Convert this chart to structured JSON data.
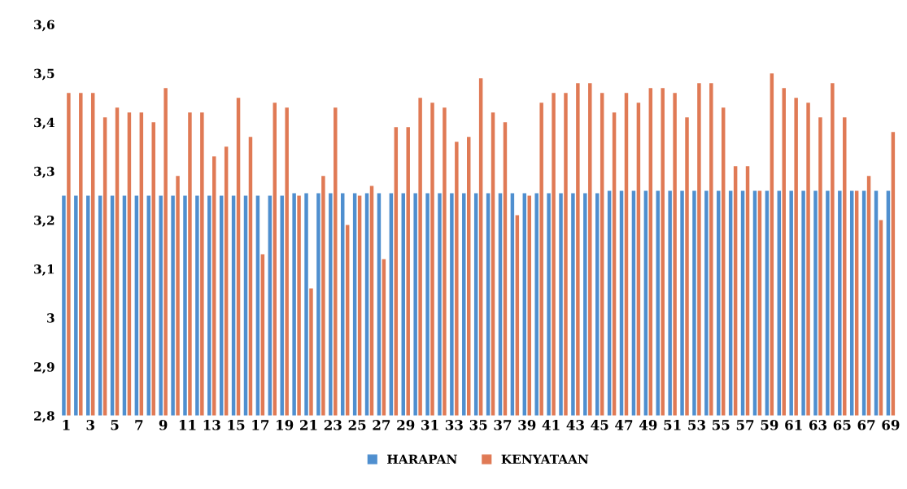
{
  "chart_data": {
    "type": "bar",
    "categories": [
      "1",
      null,
      "3",
      null,
      "5",
      null,
      "7",
      null,
      "9",
      null,
      "11",
      null,
      "13",
      null,
      "15",
      null,
      "17",
      null,
      "19",
      null,
      "21",
      null,
      "23",
      null,
      "25",
      null,
      "27",
      null,
      "29",
      null,
      "31",
      null,
      "33",
      null,
      "35",
      null,
      "37",
      null,
      "39",
      null,
      "41",
      null,
      "43",
      null,
      "45",
      null,
      "47",
      null,
      "49",
      null,
      "51",
      null,
      "53",
      null,
      "55",
      null,
      "57",
      null,
      "59",
      null,
      "61",
      null,
      "63",
      null,
      "65",
      null,
      "67",
      null,
      "69"
    ],
    "series": [
      {
        "name": "HARAPAN",
        "color": "#4f8fcf",
        "values": [
          3.25,
          3.25,
          3.25,
          3.25,
          3.25,
          3.25,
          3.25,
          3.25,
          3.25,
          3.25,
          3.25,
          3.25,
          3.25,
          3.25,
          3.25,
          3.25,
          3.25,
          3.25,
          3.25,
          3.255,
          3.255,
          3.255,
          3.255,
          3.255,
          3.255,
          3.255,
          3.255,
          3.255,
          3.255,
          3.255,
          3.255,
          3.255,
          3.255,
          3.255,
          3.255,
          3.255,
          3.255,
          3.255,
          3.255,
          3.255,
          3.255,
          3.255,
          3.255,
          3.255,
          3.255,
          3.26,
          3.26,
          3.26,
          3.26,
          3.26,
          3.26,
          3.26,
          3.26,
          3.26,
          3.26,
          3.26,
          3.26,
          3.26,
          3.26,
          3.26,
          3.26,
          3.26,
          3.26,
          3.26,
          3.26,
          3.26,
          3.26,
          3.26,
          3.26
        ]
      },
      {
        "name": "KENYATAAN",
        "color": "#e07a55",
        "values": [
          3.46,
          3.46,
          3.46,
          3.41,
          3.43,
          3.42,
          3.42,
          3.4,
          3.47,
          3.29,
          3.42,
          3.42,
          3.33,
          3.35,
          3.45,
          3.37,
          3.13,
          3.44,
          3.43,
          3.25,
          3.06,
          3.29,
          3.43,
          3.19,
          3.25,
          3.27,
          3.12,
          3.39,
          3.39,
          3.45,
          3.44,
          3.43,
          3.36,
          3.37,
          3.49,
          3.42,
          3.4,
          3.21,
          3.25,
          3.44,
          3.46,
          3.46,
          3.48,
          3.48,
          3.46,
          3.42,
          3.46,
          3.44,
          3.47,
          3.47,
          3.46,
          3.41,
          3.48,
          3.48,
          3.43,
          3.31,
          3.31,
          3.26,
          3.5,
          3.47,
          3.45,
          3.44,
          3.41,
          3.48,
          3.41,
          3.26,
          3.29,
          3.2,
          3.38
        ]
      }
    ],
    "ylim": [
      2.8,
      3.6
    ],
    "yticks": [
      {
        "value": 2.8,
        "label": "2,8"
      },
      {
        "value": 2.9,
        "label": "2,9"
      },
      3,
      {
        "value": 3.1,
        "label": "3,1"
      },
      {
        "value": 3.2,
        "label": "3,2"
      },
      {
        "value": 3.3,
        "label": "3,3"
      },
      {
        "value": 3.4,
        "label": "3,4"
      },
      {
        "value": 3.5,
        "label": "3,5"
      },
      {
        "value": 3.6,
        "label": "3,6"
      }
    ],
    "grid": false,
    "legend": "bottom"
  }
}
